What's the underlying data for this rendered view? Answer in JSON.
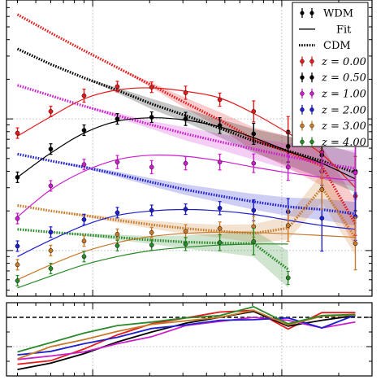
{
  "chart_data": [
    {
      "type": "line",
      "panel": "main",
      "log_x": true,
      "log_y": true,
      "grid": true,
      "xlim": [
        0.35,
        30
      ],
      "ylim": [
        0.45,
        80
      ],
      "legend_placement": "top-right",
      "legend_style": [
        {
          "label": "WDM",
          "kind": "errorbar",
          "color": "#000000"
        },
        {
          "label": "Fit",
          "kind": "solid",
          "color": "#000000"
        },
        {
          "label": "CDM",
          "kind": "dotted",
          "color": "#000000"
        }
      ],
      "series": [
        {
          "name": "z = 0.00",
          "color": "#e41a1c",
          "wdm_k": [
            0.4,
            0.6,
            0.9,
            1.35,
            2.05,
            3.1,
            4.7,
            7.1,
            10.8,
            16.3,
            24.5
          ],
          "wdm_p": [
            7.8,
            11.4,
            15.0,
            17.6,
            17.4,
            15.8,
            14.0,
            11.4,
            7.9,
            5.6,
            2.6
          ],
          "wdm_err": [
            0.04,
            0.04,
            0.05,
            0.04,
            0.04,
            0.05,
            0.05,
            0.08,
            0.12,
            0.2,
            0.3
          ],
          "fit_k": [
            0.4,
            0.6,
            0.9,
            1.35,
            2.05,
            3.1,
            4.7,
            7.1,
            10.8,
            16.3,
            24.5
          ],
          "fit_p": [
            7.4,
            10.4,
            14.2,
            16.6,
            17.2,
            16.2,
            14.4,
            11.0,
            7.8,
            5.4,
            3.0
          ],
          "cdm_k": [
            0.4,
            0.6,
            0.9,
            1.35,
            2.05,
            3.1,
            4.7,
            7.1,
            10.8,
            16.3,
            24.5
          ],
          "cdm_p": [
            62.0,
            45.0,
            33.0,
            24.5,
            18.0,
            13.2,
            9.8,
            7.0,
            5.6,
            4.4,
            1.6
          ],
          "band": [
            0.0,
            0.0,
            0.0,
            0.0,
            0.02,
            0.04,
            0.06,
            0.09,
            0.12,
            0.15,
            0.18
          ]
        },
        {
          "name": "z = 0.50",
          "color": "#000000",
          "wdm_k": [
            0.4,
            0.6,
            0.9,
            1.35,
            2.05,
            3.1,
            4.7,
            7.1,
            10.8,
            16.3,
            24.5
          ],
          "wdm_p": [
            3.6,
            5.9,
            8.2,
            10.0,
            10.3,
            10.0,
            8.9,
            7.7,
            6.2,
            5.3,
            4.0
          ],
          "wdm_err": [
            0.04,
            0.04,
            0.04,
            0.04,
            0.04,
            0.05,
            0.06,
            0.08,
            0.12,
            0.25,
            0.3
          ],
          "fit_k": [
            0.4,
            0.6,
            0.9,
            1.35,
            2.05,
            3.1,
            4.7,
            7.1,
            10.8,
            16.3,
            24.5
          ],
          "fit_p": [
            3.6,
            5.5,
            7.8,
            9.6,
            10.2,
            9.8,
            8.7,
            7.2,
            5.7,
            4.6,
            3.5
          ],
          "cdm_k": [
            0.4,
            0.6,
            0.9,
            1.35,
            2.05,
            3.1,
            4.7,
            7.1,
            10.8,
            16.3,
            24.5
          ],
          "cdm_p": [
            34.0,
            26.0,
            20.5,
            16.5,
            13.0,
            10.6,
            8.5,
            6.8,
            5.7,
            4.8,
            3.9
          ],
          "band": [
            0.0,
            0.0,
            0.0,
            0.02,
            0.04,
            0.05,
            0.07,
            0.09,
            0.11,
            0.13,
            0.15
          ]
        },
        {
          "name": "z = 1.00",
          "color": "#cc1fcc",
          "wdm_k": [
            0.4,
            0.6,
            0.9,
            1.35,
            2.05,
            3.1,
            4.7,
            7.1,
            10.8,
            16.3,
            24.5
          ],
          "wdm_p": [
            1.75,
            3.1,
            4.5,
            4.7,
            4.3,
            4.6,
            4.7,
            4.6,
            4.3,
            4.0,
            3.9
          ],
          "wdm_err": [
            0.04,
            0.04,
            0.04,
            0.05,
            0.05,
            0.05,
            0.06,
            0.07,
            0.1,
            0.15,
            0.2
          ],
          "fit_k": [
            0.4,
            0.6,
            0.9,
            1.35,
            2.05,
            3.1,
            4.7,
            7.1,
            10.8,
            16.3,
            24.5
          ],
          "fit_p": [
            1.8,
            2.9,
            4.0,
            4.9,
            5.3,
            5.2,
            4.8,
            4.3,
            3.9,
            3.6,
            3.4
          ],
          "cdm_k": [
            0.4,
            0.6,
            0.9,
            1.35,
            2.05,
            3.1,
            4.7,
            7.1,
            10.8,
            16.3,
            24.5
          ],
          "cdm_p": [
            18.0,
            15.0,
            12.5,
            10.6,
            9.0,
            7.7,
            6.7,
            5.9,
            5.2,
            4.6,
            4.2
          ],
          "band": [
            0.0,
            0.0,
            0.0,
            0.02,
            0.03,
            0.05,
            0.06,
            0.08,
            0.1,
            0.12,
            0.14
          ]
        },
        {
          "name": "z = 2.00",
          "color": "#1f1fcc",
          "wdm_k": [
            0.4,
            0.6,
            0.9,
            1.35,
            2.05,
            3.1,
            4.7,
            7.1,
            10.8,
            16.3,
            24.5
          ],
          "wdm_p": [
            1.08,
            1.38,
            1.72,
            1.94,
            2.02,
            2.06,
            2.1,
            2.02,
            1.97,
            1.76,
            1.81
          ],
          "wdm_err": [
            0.04,
            0.04,
            0.04,
            0.04,
            0.04,
            0.04,
            0.05,
            0.08,
            0.1,
            0.25,
            0.18
          ],
          "fit_k": [
            0.4,
            0.6,
            0.9,
            1.35,
            2.05,
            3.1,
            4.7,
            7.1,
            10.8,
            16.3,
            24.5
          ],
          "fit_p": [
            0.9,
            1.2,
            1.55,
            1.85,
            2.0,
            2.05,
            2.0,
            1.88,
            1.7,
            1.55,
            1.45
          ],
          "cdm_k": [
            0.4,
            0.6,
            0.9,
            1.35,
            2.05,
            3.1,
            4.7,
            7.1,
            10.8,
            16.3,
            24.5
          ],
          "cdm_p": [
            5.4,
            4.8,
            4.3,
            3.8,
            3.3,
            2.9,
            2.6,
            2.35,
            2.15,
            2.05,
            1.9
          ],
          "band": [
            0.0,
            0.0,
            0.01,
            0.02,
            0.03,
            0.04,
            0.05,
            0.06,
            0.07,
            0.08,
            0.09
          ]
        },
        {
          "name": "z = 3.00",
          "color": "#c87a2a",
          "wdm_k": [
            0.4,
            0.6,
            0.9,
            1.35,
            2.05,
            3.1,
            4.7,
            7.1,
            10.8,
            16.3,
            24.5
          ],
          "wdm_p": [
            0.78,
            1.0,
            1.18,
            1.33,
            1.37,
            1.4,
            1.47,
            1.52,
            1.55,
            2.9,
            1.13
          ],
          "wdm_err": [
            0.04,
            0.04,
            0.04,
            0.04,
            0.04,
            0.05,
            0.05,
            0.08,
            0.12,
            0.15,
            0.2
          ],
          "fit_k": [
            0.4,
            0.6,
            0.9,
            1.35,
            2.05,
            3.1,
            4.7,
            7.1,
            10.8,
            16.3,
            24.5
          ],
          "fit_p": [
            0.6,
            0.78,
            0.98,
            1.15,
            1.28,
            1.35,
            1.38,
            1.37,
            1.34,
            1.3,
            1.26
          ],
          "cdm_k": [
            0.4,
            0.6,
            0.9,
            1.35,
            2.05,
            3.1,
            4.7,
            7.1,
            10.8,
            16.3,
            24.5
          ],
          "cdm_p": [
            2.2,
            2.0,
            1.85,
            1.7,
            1.57,
            1.47,
            1.4,
            1.35,
            1.48,
            3.0,
            1.25
          ],
          "band": [
            0.0,
            0.0,
            0.01,
            0.02,
            0.03,
            0.04,
            0.05,
            0.07,
            0.09,
            0.11,
            0.13
          ]
        },
        {
          "name": "z = 4.00",
          "color": "#2a8a2a",
          "wdm_k": [
            0.4,
            0.6,
            0.9,
            1.35,
            2.05,
            3.1,
            4.7,
            7.1,
            10.8
          ],
          "wdm_p": [
            0.59,
            0.73,
            0.9,
            1.09,
            1.1,
            1.12,
            1.15,
            1.17,
            0.62
          ],
          "wdm_err": [
            0.04,
            0.04,
            0.04,
            0.04,
            0.04,
            0.05,
            0.06,
            0.1,
            0.05
          ],
          "fit_k": [
            0.4,
            0.6,
            0.9,
            1.35,
            2.05,
            3.1,
            4.7,
            7.1,
            10.8
          ],
          "fit_p": [
            0.52,
            0.64,
            0.78,
            0.9,
            1.0,
            1.06,
            1.1,
            1.12,
            1.12
          ],
          "cdm_k": [
            0.4,
            0.6,
            0.9,
            1.35,
            2.05,
            3.1,
            4.7,
            7.1,
            10.8
          ],
          "cdm_p": [
            1.45,
            1.38,
            1.32,
            1.26,
            1.2,
            1.16,
            1.14,
            1.13,
            0.72
          ],
          "band": [
            0.0,
            0.0,
            0.01,
            0.02,
            0.03,
            0.05,
            0.07,
            0.1,
            0.14
          ]
        }
      ]
    },
    {
      "type": "line",
      "panel": "ratio",
      "log_x": true,
      "grid": true,
      "xlim": [
        0.35,
        30
      ],
      "ylim": [
        0.0,
        1.25
      ],
      "reference_line": {
        "y": 1.0,
        "style": "dashed",
        "color": "#000000"
      },
      "x": [
        0.4,
        0.6,
        0.9,
        1.35,
        2.05,
        3.1,
        4.7,
        7.1,
        10.8,
        16.3,
        24.5
      ],
      "series": [
        {
          "name": "z = 0.00",
          "color": "#e41a1c",
          "values": [
            0.2,
            0.26,
            0.46,
            0.7,
            0.89,
            0.99,
            1.09,
            1.12,
            0.8,
            1.08,
            1.08
          ]
        },
        {
          "name": "z = 0.50",
          "color": "#000000",
          "values": [
            0.11,
            0.22,
            0.38,
            0.58,
            0.75,
            0.9,
            1.0,
            1.1,
            0.85,
            0.95,
            1.03
          ]
        },
        {
          "name": "z = 1.00",
          "color": "#cc1fcc",
          "values": [
            0.28,
            0.34,
            0.41,
            0.55,
            0.67,
            0.86,
            0.93,
            1.0,
            0.95,
            0.82,
            0.92
          ]
        },
        {
          "name": "z = 2.00",
          "color": "#1f1fcc",
          "values": [
            0.36,
            0.42,
            0.55,
            0.66,
            0.81,
            0.87,
            0.95,
            0.96,
            0.99,
            0.82,
            1.04
          ]
        },
        {
          "name": "z = 3.00",
          "color": "#c87a2a",
          "values": [
            0.29,
            0.5,
            0.62,
            0.76,
            0.88,
            0.94,
            1.0,
            1.12,
            0.87,
            1.02,
            1.04
          ]
        },
        {
          "name": "z = 4.00",
          "color": "#2a8a2a",
          "values": [
            0.41,
            0.57,
            0.73,
            0.86,
            0.92,
            0.99,
            1.03,
            1.18,
            0.89,
            1.03,
            1.05
          ]
        }
      ]
    }
  ]
}
